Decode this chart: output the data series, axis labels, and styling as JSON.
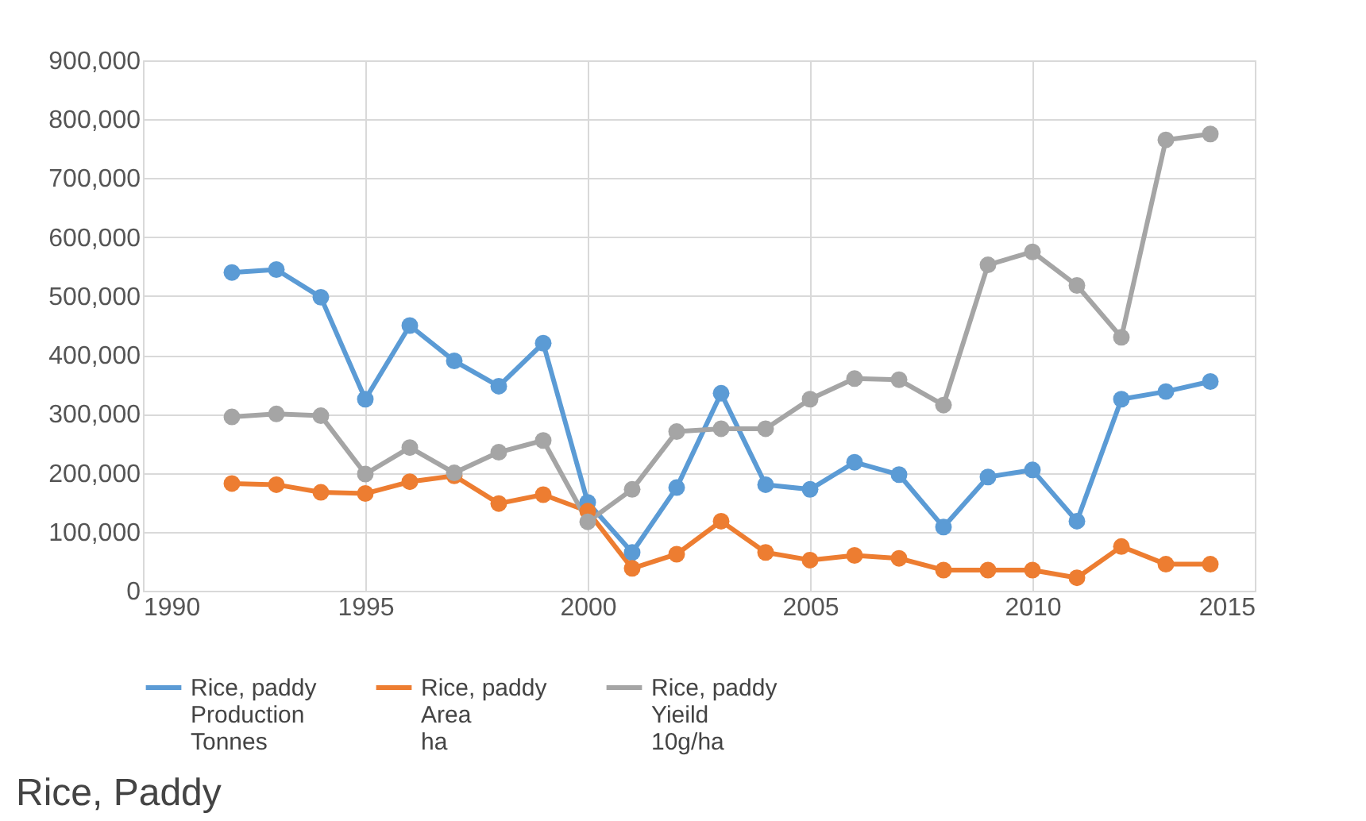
{
  "chart_data": {
    "type": "line",
    "annotations": [
      "Rice, Paddy"
    ],
    "x": [
      1992,
      1993,
      1994,
      1995,
      1996,
      1997,
      1998,
      1999,
      2000,
      2001,
      2002,
      2003,
      2004,
      2005,
      2006,
      2007,
      2008,
      2009,
      2010,
      2011,
      2012,
      2013,
      2014
    ],
    "series": [
      {
        "name": "Rice, paddy\nProduction\nTonnes",
        "color": "#5b9bd5",
        "values": [
          540000,
          545000,
          498000,
          325000,
          450000,
          390000,
          347000,
          420000,
          150000,
          65000,
          175000,
          335000,
          180000,
          172000,
          218000,
          197000,
          108000,
          193000,
          205000,
          118000,
          325000,
          338000,
          355000
        ]
      },
      {
        "name": "Rice, paddy\nArea\nha",
        "color": "#ed7d31",
        "values": [
          182000,
          180000,
          167000,
          165000,
          185000,
          195000,
          148000,
          163000,
          135000,
          38000,
          62000,
          118000,
          65000,
          52000,
          60000,
          55000,
          35000,
          35000,
          35000,
          22000,
          75000,
          45000,
          45000
        ]
      },
      {
        "name": "Rice, paddy\nYieild\n10g/ha",
        "color": "#a5a5a5",
        "values": [
          295000,
          300000,
          297000,
          198000,
          243000,
          200000,
          235000,
          255000,
          117000,
          172000,
          270000,
          275000,
          275000,
          325000,
          360000,
          358000,
          315000,
          553000,
          575000,
          518000,
          430000,
          765000,
          775000
        ]
      }
    ],
    "xlim": [
      1990,
      2015
    ],
    "xticks": [
      1990,
      1995,
      2000,
      2005,
      2010,
      2015
    ],
    "ylim": [
      0,
      900000
    ],
    "yticks": [
      0,
      {
        "value": 100000,
        "label": "100,000"
      },
      {
        "value": 200000,
        "label": "200,000"
      },
      {
        "value": 300000,
        "label": "300,000"
      },
      {
        "value": 400000,
        "label": "400,000"
      },
      {
        "value": 500000,
        "label": "500,000"
      },
      {
        "value": 600000,
        "label": "600,000"
      },
      {
        "value": 700000,
        "label": "700,000"
      },
      {
        "value": 800000,
        "label": "800,000"
      },
      {
        "value": 900000,
        "label": "900,000"
      }
    ],
    "grid": true,
    "legend": "bottom",
    "marker": "circle",
    "line_style": "solid"
  }
}
